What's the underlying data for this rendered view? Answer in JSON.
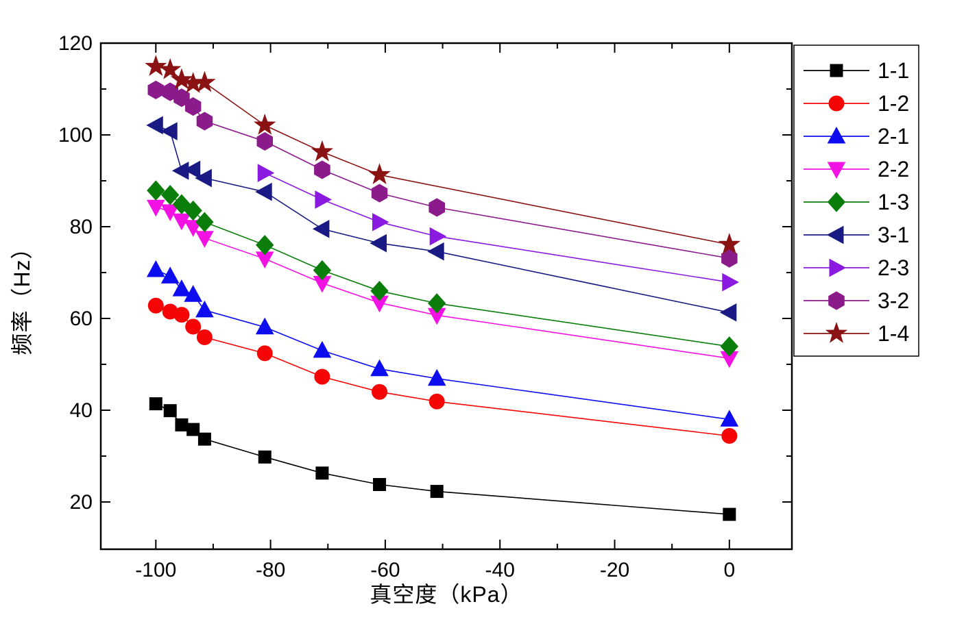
{
  "chart_data": {
    "type": "line",
    "title": "",
    "xlabel": "真空度（kPa）",
    "ylabel": "频率（Hz）",
    "xlim": [
      -109.6,
      10.9
    ],
    "ylim": [
      9.7,
      120
    ],
    "x_major_ticks": [
      -100,
      -80,
      -60,
      -40,
      -20,
      0
    ],
    "x_minor_ticks": [
      -90,
      -70,
      -50,
      -30,
      -10
    ],
    "y_major_ticks": [
      20,
      40,
      60,
      80,
      100,
      120
    ],
    "y_minor_ticks": [
      30,
      50,
      70,
      90,
      110
    ],
    "grid": false,
    "legend_position": "outside-right",
    "series": [
      {
        "name": "1-1",
        "marker": "square",
        "color": "#000000",
        "points": [
          [
            -100,
            41.4
          ],
          [
            -97.5,
            39.9
          ],
          [
            -95.5,
            36.8
          ],
          [
            -93.5,
            35.8
          ],
          [
            -91.5,
            33.7
          ],
          [
            -81,
            29.8
          ],
          [
            -71,
            26.3
          ],
          [
            -61,
            23.8
          ],
          [
            -51,
            22.3
          ],
          [
            0,
            17.3
          ]
        ]
      },
      {
        "name": "1-2",
        "marker": "circle",
        "color": "#f50505",
        "points": [
          [
            -100,
            62.8
          ],
          [
            -97.5,
            61.5
          ],
          [
            -95.5,
            60.8
          ],
          [
            -93.5,
            58.2
          ],
          [
            -91.5,
            55.9
          ],
          [
            -81,
            52.4
          ],
          [
            -71,
            47.3
          ],
          [
            -61,
            44.0
          ],
          [
            -51,
            41.9
          ],
          [
            0,
            34.4
          ]
        ]
      },
      {
        "name": "2-1",
        "marker": "triangle-up",
        "color": "#0d0df0",
        "points": [
          [
            -100,
            70.6
          ],
          [
            -97.5,
            69.2
          ],
          [
            -95.5,
            66.4
          ],
          [
            -93.5,
            65.2
          ],
          [
            -91.5,
            61.8
          ],
          [
            -81,
            58.1
          ],
          [
            -71,
            53.0
          ],
          [
            -61,
            49.0
          ],
          [
            -51,
            46.9
          ],
          [
            0,
            38.0
          ]
        ]
      },
      {
        "name": "2-2",
        "marker": "triangle-down",
        "color": "#f312e4",
        "points": [
          [
            -100,
            84.3
          ],
          [
            -97.5,
            83.3
          ],
          [
            -95.5,
            81.3
          ],
          [
            -93.5,
            79.9
          ],
          [
            -91.5,
            77.5
          ],
          [
            -81,
            73.0
          ],
          [
            -71,
            67.7
          ],
          [
            -61,
            63.4
          ],
          [
            -51,
            60.7
          ],
          [
            0,
            51.3
          ]
        ]
      },
      {
        "name": "1-3",
        "marker": "diamond",
        "color": "#0b7d0b",
        "points": [
          [
            -100,
            87.9
          ],
          [
            -97.5,
            86.9
          ],
          [
            -95.5,
            84.9
          ],
          [
            -93.5,
            83.5
          ],
          [
            -91.5,
            81.0
          ],
          [
            -81,
            76.0
          ],
          [
            -71,
            70.5
          ],
          [
            -61,
            66.0
          ],
          [
            -51,
            63.3
          ],
          [
            0,
            53.9
          ]
        ]
      },
      {
        "name": "3-1",
        "marker": "triangle-left",
        "color": "#1a1a85",
        "points": [
          [
            -100,
            102.1
          ],
          [
            -97.5,
            100.8
          ],
          [
            -95.5,
            92.2
          ],
          [
            -93.5,
            92.4
          ],
          [
            -91.5,
            90.6
          ],
          [
            -81,
            87.6
          ],
          [
            -71,
            79.5
          ],
          [
            -61,
            76.4
          ],
          [
            -51,
            74.6
          ],
          [
            0,
            61.3
          ]
        ]
      },
      {
        "name": "2-3",
        "marker": "triangle-right",
        "color": "#8a1ae0",
        "points": [
          [
            -81,
            91.7
          ],
          [
            -71,
            85.9
          ],
          [
            -61,
            81.0
          ],
          [
            -51,
            77.9
          ],
          [
            0,
            67.9
          ]
        ]
      },
      {
        "name": "3-2",
        "marker": "hexagon",
        "color": "#8b1a8b",
        "points": [
          [
            -100,
            109.8
          ],
          [
            -97.5,
            109.4
          ],
          [
            -95.5,
            108.1
          ],
          [
            -93.5,
            106.2
          ],
          [
            -91.5,
            103.0
          ],
          [
            -81,
            98.6
          ],
          [
            -71,
            92.4
          ],
          [
            -61,
            87.3
          ],
          [
            -51,
            84.2
          ],
          [
            0,
            73.1
          ]
        ]
      },
      {
        "name": "1-4",
        "marker": "star",
        "color": "#8b1212",
        "points": [
          [
            -100,
            114.9
          ],
          [
            -97.5,
            114.2
          ],
          [
            -95.5,
            112.0
          ],
          [
            -93.5,
            111.2
          ],
          [
            -91.5,
            111.4
          ],
          [
            -81,
            102.1
          ],
          [
            -71,
            96.3
          ],
          [
            -61,
            91.3
          ],
          [
            0,
            76.1
          ]
        ]
      }
    ]
  }
}
